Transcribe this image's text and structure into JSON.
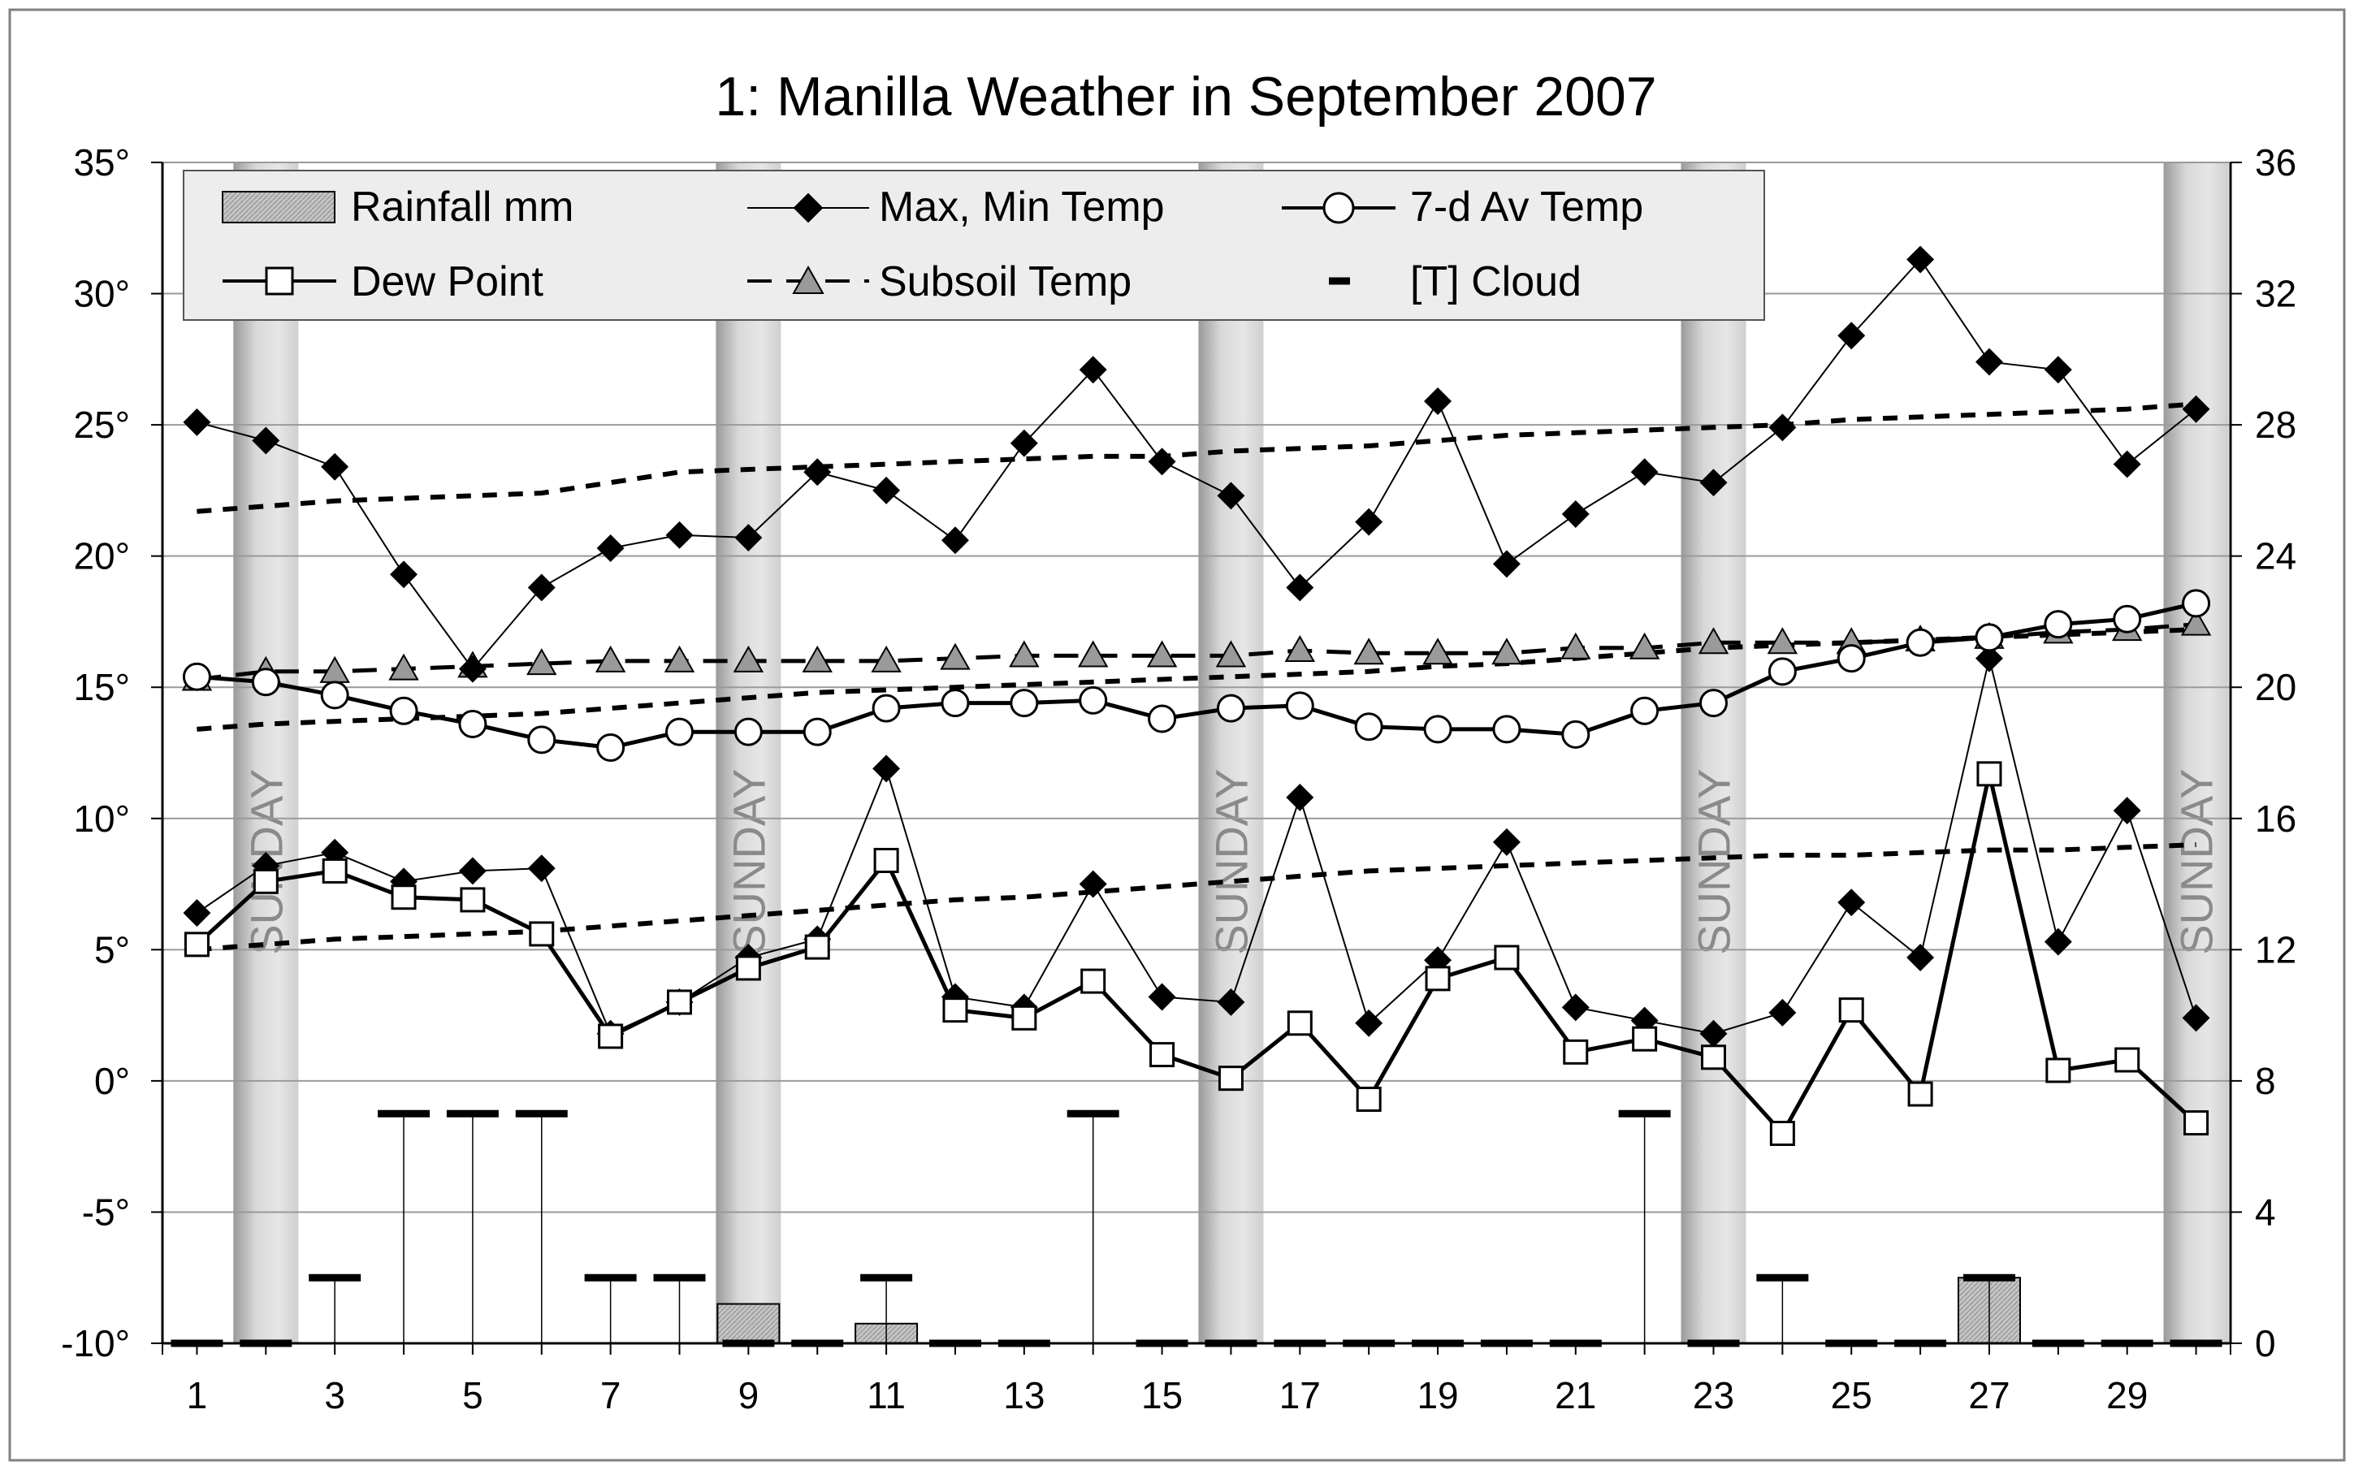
{
  "chart_data": {
    "type": "line",
    "title": "1: Manilla Weather in September 2007",
    "x": [
      1,
      2,
      3,
      4,
      5,
      6,
      7,
      8,
      9,
      10,
      11,
      12,
      13,
      14,
      15,
      16,
      17,
      18,
      19,
      20,
      21,
      22,
      23,
      24,
      25,
      26,
      27,
      28,
      29,
      30
    ],
    "x_tick_labels": [
      "1",
      "3",
      "5",
      "7",
      "9",
      "11",
      "13",
      "15",
      "17",
      "19",
      "21",
      "23",
      "25",
      "27",
      "29"
    ],
    "xlim": [
      0.5,
      30.5
    ],
    "ylim_left": [
      -10,
      35
    ],
    "y_left_tick_labels": [
      "35°",
      "30°",
      "25°",
      "20°",
      "15°",
      "10°",
      "5°",
      "0°",
      "-5°",
      "-10°"
    ],
    "ylim_right": [
      0,
      36
    ],
    "y_right_tick_labels": [
      "36",
      "32",
      "28",
      "24",
      "20",
      "16",
      "12",
      "8",
      "4",
      "0"
    ],
    "sunday_label": "SUNDAY",
    "sundays": [
      2,
      9,
      16,
      23,
      30
    ],
    "legend": {
      "rainfall": "Rainfall mm",
      "maxmin": "Max, Min Temp",
      "avg7": "7-d Av Temp",
      "dew": "Dew Point",
      "subsoil": "Subsoil Temp",
      "cloud": "[T] Cloud"
    },
    "series": {
      "max_temp": [
        25.1,
        24.4,
        23.4,
        19.3,
        15.7,
        18.8,
        20.3,
        20.8,
        20.7,
        23.2,
        22.5,
        20.6,
        24.3,
        27.1,
        23.6,
        22.3,
        18.8,
        21.3,
        25.9,
        19.7,
        21.6,
        23.2,
        22.8,
        24.9,
        28.4,
        31.3,
        27.4,
        27.1,
        23.5,
        25.6
      ],
      "min_temp": [
        6.4,
        8.2,
        8.7,
        7.6,
        8.0,
        8.1,
        1.8,
        3.0,
        4.7,
        5.4,
        11.9,
        3.2,
        2.8,
        7.5,
        3.2,
        3.0,
        10.8,
        2.2,
        4.6,
        9.1,
        2.8,
        2.3,
        1.8,
        2.6,
        6.8,
        4.7,
        16.1,
        5.3,
        10.3,
        2.4
      ],
      "avg7_temp": [
        15.4,
        15.2,
        14.7,
        14.1,
        13.6,
        13.0,
        12.7,
        13.3,
        13.3,
        13.3,
        14.2,
        14.4,
        14.4,
        14.5,
        13.8,
        14.2,
        14.3,
        13.5,
        13.4,
        13.4,
        13.2,
        14.1,
        14.4,
        15.6,
        16.1,
        16.7,
        16.9,
        17.4,
        17.6,
        18.2
      ],
      "dew_point": [
        5.2,
        7.6,
        8.0,
        7.0,
        6.9,
        5.6,
        1.7,
        3.0,
        4.3,
        5.1,
        8.4,
        2.7,
        2.4,
        3.8,
        1.0,
        0.1,
        2.2,
        -0.7,
        3.9,
        4.7,
        1.1,
        1.6,
        0.9,
        -2.0,
        2.7,
        -0.5,
        11.7,
        0.4,
        0.8,
        -1.6
      ],
      "subsoil_temp": [
        15.3,
        15.6,
        15.6,
        15.7,
        15.8,
        15.9,
        16.0,
        16.0,
        16.0,
        16.0,
        16.0,
        16.1,
        16.2,
        16.2,
        16.2,
        16.2,
        16.4,
        16.3,
        16.3,
        16.3,
        16.5,
        16.5,
        16.7,
        16.7,
        16.7,
        16.8,
        16.9,
        17.1,
        17.2,
        17.4
      ],
      "max_trend": [
        21.7,
        21.9,
        22.1,
        22.2,
        22.3,
        22.4,
        22.8,
        23.2,
        23.3,
        23.4,
        23.5,
        23.6,
        23.7,
        23.8,
        23.8,
        24.0,
        24.1,
        24.2,
        24.4,
        24.6,
        24.7,
        24.8,
        24.9,
        25.0,
        25.2,
        25.3,
        25.4,
        25.5,
        25.6,
        25.8
      ],
      "mid_trend": [
        13.4,
        13.6,
        13.7,
        13.8,
        13.9,
        14.0,
        14.2,
        14.4,
        14.6,
        14.8,
        14.9,
        15.0,
        15.1,
        15.2,
        15.3,
        15.4,
        15.5,
        15.6,
        15.8,
        15.9,
        16.1,
        16.3,
        16.5,
        16.6,
        16.7,
        16.8,
        16.9,
        17.0,
        17.1,
        17.2
      ],
      "min_trend": [
        5.0,
        5.2,
        5.4,
        5.5,
        5.6,
        5.7,
        5.9,
        6.1,
        6.3,
        6.5,
        6.7,
        6.9,
        7.0,
        7.2,
        7.4,
        7.6,
        7.8,
        8.0,
        8.1,
        8.2,
        8.3,
        8.4,
        8.5,
        8.6,
        8.6,
        8.7,
        8.8,
        8.8,
        8.9,
        9.0
      ],
      "rainfall_mm": [
        0,
        0,
        0,
        0,
        0,
        0,
        0,
        0,
        1.2,
        0,
        0.6,
        0,
        0,
        0,
        0,
        0,
        0,
        0,
        0,
        0,
        0,
        0,
        0,
        0,
        0,
        0,
        2.0,
        0,
        0,
        0
      ],
      "cloud_right": [
        0,
        0,
        2,
        7,
        7,
        7,
        2,
        2,
        0,
        0,
        2,
        0,
        0,
        7,
        0,
        0,
        0,
        0,
        0,
        0,
        0,
        7,
        0,
        2,
        0,
        0,
        2,
        0,
        0,
        0
      ]
    },
    "colors": {
      "line": "#000000",
      "subsoil_marker": "#9a9a9a",
      "rain_fill": "#b8b8b8",
      "sunday_band": "#cfcfcf",
      "grid": "#9a9a9a"
    }
  }
}
